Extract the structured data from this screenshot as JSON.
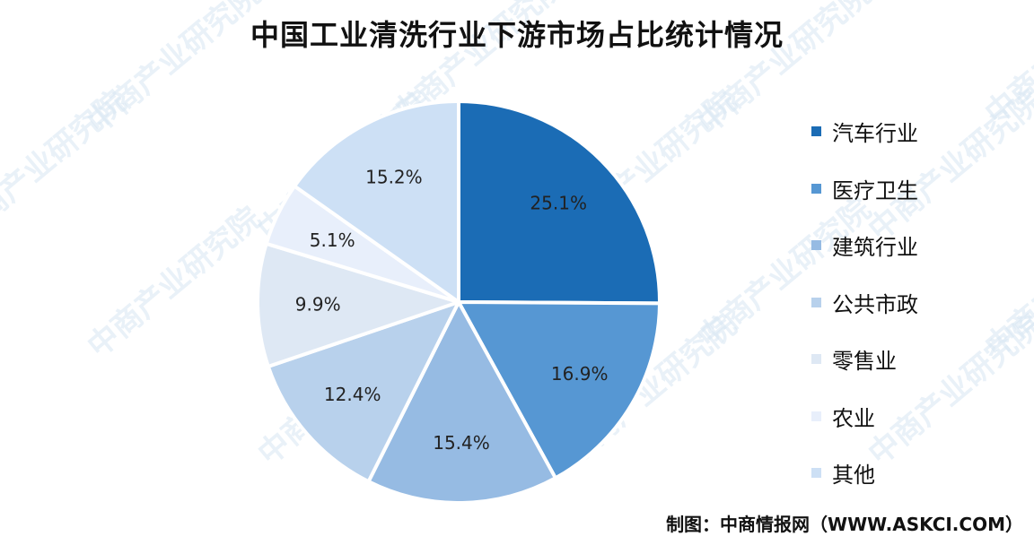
{
  "title": "中国工业清洗行业下游市场占比统计情况",
  "source": "制图：中商情报网（WWW.ASKCI.COM）",
  "watermark": "中商产业研究院",
  "chart_data": {
    "type": "pie",
    "title": "中国工业清洗行业下游市场占比统计情况",
    "start_angle": "12 o'clock",
    "direction": "clockwise",
    "legend_position": "right",
    "slices": [
      {
        "label": "汽车行业",
        "value": 25.1,
        "display": "25.1%",
        "color": "#1b6cb5"
      },
      {
        "label": "医疗卫生",
        "value": 16.9,
        "display": "16.9%",
        "color": "#5697d3"
      },
      {
        "label": "建筑行业",
        "value": 15.4,
        "display": "15.4%",
        "color": "#96bbe3"
      },
      {
        "label": "公共市政",
        "value": 12.4,
        "display": "12.4%",
        "color": "#b8d1ec"
      },
      {
        "label": "零售业",
        "value": 9.9,
        "display": "9.9%",
        "color": "#dee8f4"
      },
      {
        "label": "农业",
        "value": 5.1,
        "display": "5.1%",
        "color": "#e8effb"
      },
      {
        "label": "其他",
        "value": 15.2,
        "display": "15.2%",
        "color": "#cde0f5"
      }
    ]
  }
}
